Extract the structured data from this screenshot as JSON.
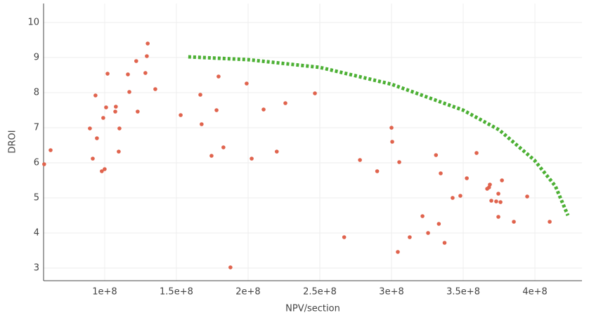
{
  "chart_data": {
    "type": "scatter",
    "x_label": "NPV/section",
    "y_label": "DROI",
    "xlim": [
      57400000.0,
      432800000.0
    ],
    "ylim": [
      2.64,
      10.54
    ],
    "xticks": [
      {
        "value": 100000000.0,
        "label": "1e+8"
      },
      {
        "value": 150000000.0,
        "label": "1.5e+8"
      },
      {
        "value": 200000000.0,
        "label": "2e+8"
      },
      {
        "value": 250000000.0,
        "label": "2.5e+8"
      },
      {
        "value": 300000000.0,
        "label": "3e+8"
      },
      {
        "value": 350000000.0,
        "label": "3.5e+8"
      },
      {
        "value": 400000000.0,
        "label": "4e+8"
      }
    ],
    "yticks": [
      3,
      4,
      5,
      6,
      7,
      8,
      9,
      10
    ],
    "grid": true,
    "series": [
      {
        "mode": "markers",
        "color": "#e0634d",
        "x": [
          57800000.0,
          62300000.0,
          89700000.0,
          91700000.0,
          93600000.0,
          94600000.0,
          98000000.0,
          99000000.0,
          100000000.0,
          101000000.0,
          102000000.0,
          107400000.0,
          107800000.0,
          109800000.0,
          110300000.0,
          116200000.0,
          117200000.0,
          122000000.0,
          123000000.0,
          128400000.0,
          129400000.0,
          130000000.0,
          135300000.0,
          153000000.0,
          166700000.0,
          167600000.0,
          174500000.0,
          178000000.0,
          179400000.0,
          182800000.0,
          187700000.0,
          199000000.0,
          202500000.0,
          210800000.0,
          220000000.0,
          226000000.0,
          246600000.0,
          267000000.0,
          278000000.0,
          290000000.0,
          300000000.0,
          300500000.0,
          304400000.0,
          305400000.0,
          312700000.0,
          321600000.0,
          325500000.0,
          331000000.0,
          333000000.0,
          334300000.0,
          337000000.0,
          342600000.0,
          348000000.0,
          352500000.0,
          359300000.0,
          366700000.0,
          368000000.0,
          368600000.0,
          369600000.0,
          373000000.0,
          374500000.0,
          374500000.0,
          376000000.0,
          377000000.0,
          385300000.0,
          394600000.0,
          410300000.0
        ],
        "values": [
          5.96,
          6.36,
          6.98,
          6.12,
          7.92,
          6.7,
          5.76,
          7.28,
          5.82,
          7.58,
          8.54,
          7.46,
          7.6,
          6.32,
          6.98,
          8.52,
          8.02,
          8.9,
          7.46,
          8.56,
          9.04,
          9.4,
          8.1,
          7.36,
          7.94,
          7.1,
          6.2,
          7.5,
          8.46,
          6.44,
          3.02,
          8.26,
          6.12,
          7.52,
          6.32,
          7.7,
          7.98,
          3.88,
          6.08,
          5.76,
          7.0,
          6.6,
          3.46,
          6.02,
          3.88,
          4.48,
          4.0,
          6.22,
          4.26,
          5.7,
          3.72,
          5.0,
          5.06,
          5.56,
          6.28,
          5.26,
          5.3,
          5.38,
          4.92,
          4.9,
          5.12,
          4.46,
          4.88,
          5.5,
          4.32,
          5.04,
          4.32
        ]
      },
      {
        "mode": "lines",
        "color": "#4cb034",
        "x": [
          158300000.0,
          200000000.0,
          250000000.0,
          300000000.0,
          350000000.0,
          375000000.0,
          399500000.0,
          414200000.0,
          423000000.0
        ],
        "values": [
          9.02,
          8.94,
          8.72,
          8.24,
          7.5,
          6.94,
          6.08,
          5.34,
          4.5
        ]
      }
    ]
  }
}
